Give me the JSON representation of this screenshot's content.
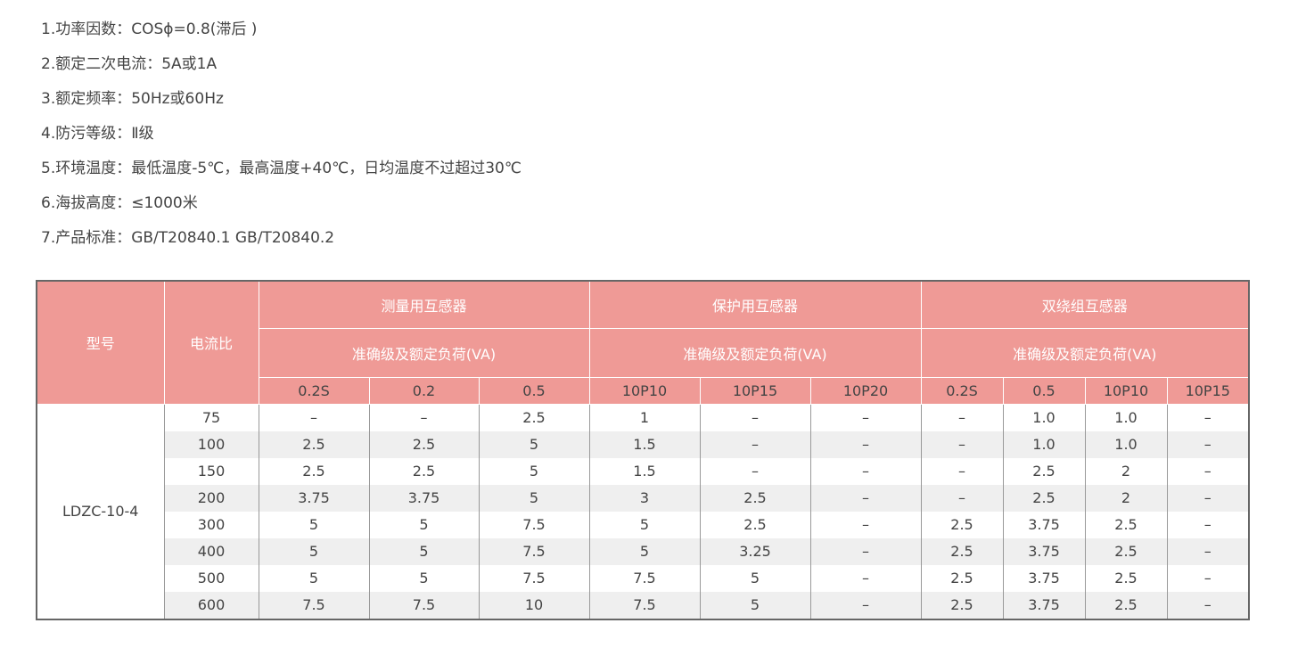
{
  "specs": [
    "1.功率因数：COSϕ=0.8(滞后 )",
    "2.额定二次电流：5A或1A",
    "3.额定频率：50Hz或60Hz",
    "4.防污等级：Ⅱ级",
    "5.环境温度：最低温度-5℃，最高温度+40℃，日均温度不过超过30℃",
    "6.海拔高度：≤1000米",
    "7.产品标准：GB/T20840.1   GB/T20840.2"
  ],
  "table": {
    "header_color": "#ef9a96",
    "model_header": "型号",
    "ratio_header": "电流比",
    "groups": [
      {
        "name": "测量用互感器",
        "sub": "准确级及额定负荷(VA)",
        "classes": [
          "0.2S",
          "0.2",
          "0.5"
        ]
      },
      {
        "name": "保护用互感器",
        "sub": "准确级及额定负荷(VA)",
        "classes": [
          "10P10",
          "10P15",
          "10P20"
        ]
      },
      {
        "name": "双绕组互感器",
        "sub": "准确级及额定负荷(VA)",
        "classes": [
          "0.2S",
          "0.5",
          "10P10",
          "10P15"
        ]
      }
    ],
    "model": "LDZC-10-4",
    "rows": [
      {
        "ratio": "75",
        "values": [
          "–",
          "–",
          "2.5",
          "1",
          "–",
          "–",
          "–",
          "1.0",
          "1.0",
          "–"
        ]
      },
      {
        "ratio": "100",
        "values": [
          "2.5",
          "2.5",
          "5",
          "1.5",
          "–",
          "–",
          "–",
          "1.0",
          "1.0",
          "–"
        ]
      },
      {
        "ratio": "150",
        "values": [
          "2.5",
          "2.5",
          "5",
          "1.5",
          "–",
          "–",
          "–",
          "2.5",
          "2",
          "–"
        ]
      },
      {
        "ratio": "200",
        "values": [
          "3.75",
          "3.75",
          "5",
          "3",
          "2.5",
          "–",
          "–",
          "2.5",
          "2",
          "–"
        ]
      },
      {
        "ratio": "300",
        "values": [
          "5",
          "5",
          "7.5",
          "5",
          "2.5",
          "–",
          "2.5",
          "3.75",
          "2.5",
          "–"
        ]
      },
      {
        "ratio": "400",
        "values": [
          "5",
          "5",
          "7.5",
          "5",
          "3.25",
          "–",
          "2.5",
          "3.75",
          "2.5",
          "–"
        ]
      },
      {
        "ratio": "500",
        "values": [
          "5",
          "5",
          "7.5",
          "7.5",
          "5",
          "–",
          "2.5",
          "3.75",
          "2.5",
          "–"
        ]
      },
      {
        "ratio": "600",
        "values": [
          "7.5",
          "7.5",
          "10",
          "7.5",
          "5",
          "–",
          "2.5",
          "3.75",
          "2.5",
          "–"
        ]
      }
    ]
  }
}
